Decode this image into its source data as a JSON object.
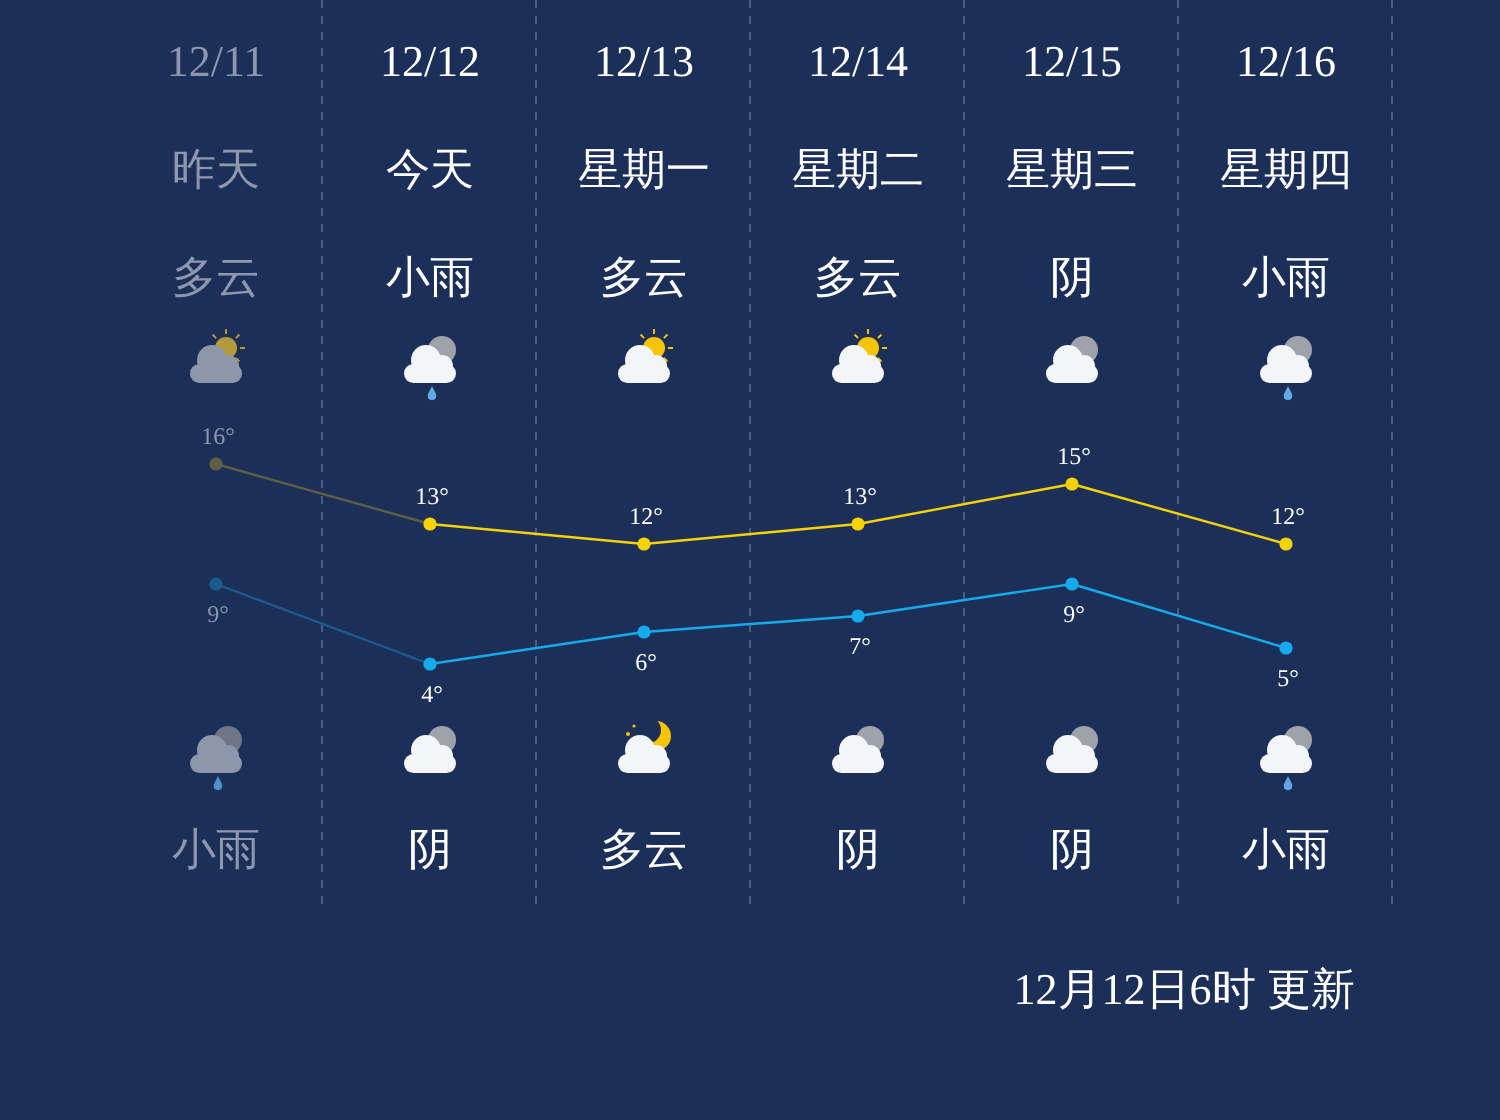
{
  "chart_data": [
    {
      "type": "line",
      "categories": [
        "12/11",
        "12/12",
        "12/13",
        "12/14",
        "12/15",
        "12/16"
      ],
      "grid": "x",
      "marker": "circle",
      "series": [
        {
          "color": "#f6d200",
          "colors": [
            "#5c5f42",
            "#f6d200",
            "#f6d200",
            "#f6d200",
            "#f6d200",
            "#f6d200"
          ],
          "values": [
            16,
            13,
            12,
            13,
            15,
            12
          ],
          "value_labels": [
            "16°",
            "13°",
            "12°",
            "13°",
            "15°",
            "12°"
          ]
        }
      ],
      "annotations": [
        "昨天",
        "今天",
        "星期一",
        "星期二",
        "星期三",
        "星期四",
        "多云",
        "小雨",
        "多云",
        "多云",
        "阴",
        "小雨"
      ]
    },
    {
      "type": "line",
      "categories": [
        null,
        null,
        null,
        null,
        null,
        null
      ],
      "grid": "x",
      "marker": "circle",
      "series": [
        {
          "color": "#14abec",
          "colors": [
            "#1a5b8e",
            "#14abec",
            "#14abec",
            "#14abec",
            "#14abec",
            "#14abec"
          ],
          "values": [
            9,
            4,
            6,
            7,
            9,
            5
          ],
          "value_labels": [
            "9°",
            "4°",
            "6°",
            "7°",
            "9°",
            "5°"
          ]
        }
      ],
      "annotations": [
        "小雨",
        "阴",
        "多云",
        "阴",
        "阴",
        "小雨",
        "12月12日6时 更新"
      ]
    }
  ]
}
